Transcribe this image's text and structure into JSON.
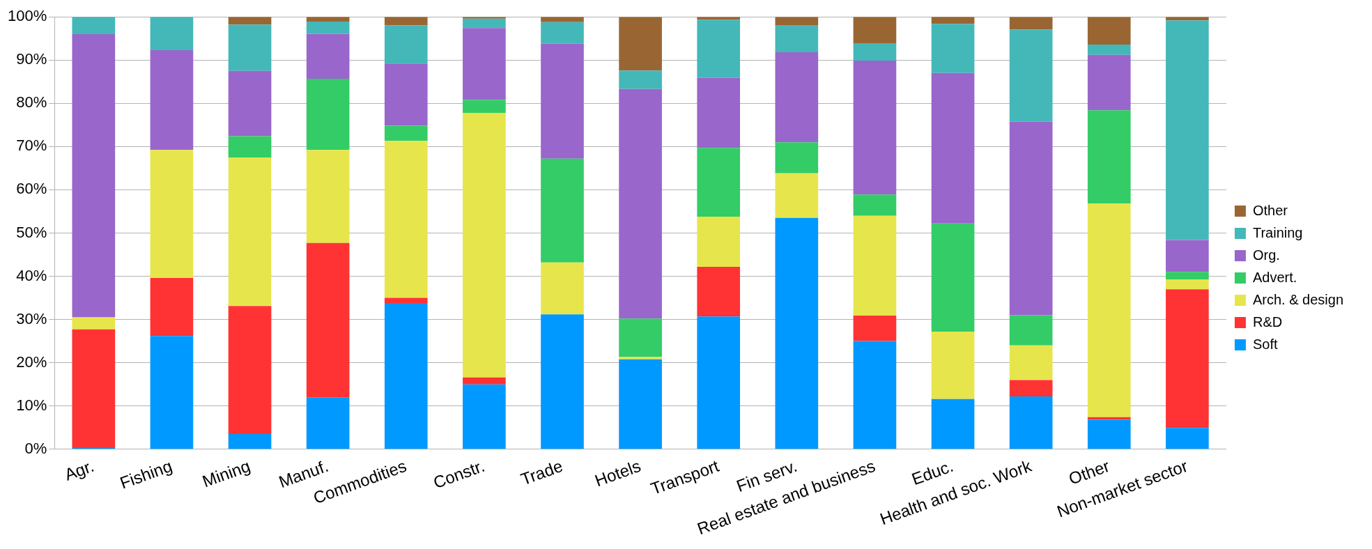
{
  "chart_data": {
    "type": "bar",
    "stacked": true,
    "grid": "y",
    "legend": "right",
    "categories": [
      "Agr.",
      "Fishing",
      "Mining",
      "Manuf.",
      "Commodities",
      "Constr.",
      "Trade",
      "Hotels",
      "Transport",
      "Fin serv.",
      "Real estate and business",
      "Educ.",
      "Health and soc. Work",
      "Other",
      "Non-market sector"
    ],
    "series": [
      {
        "name": "Soft",
        "color": "#0099ff",
        "values": [
          0.3,
          26.2,
          3.5,
          12,
          33.8,
          15,
          31.2,
          20.8,
          30.7,
          53.5,
          25,
          11.6,
          12.2,
          6.8,
          4.9
        ]
      },
      {
        "name": "R&D",
        "color": "#ff3333",
        "values": [
          27.4,
          13.4,
          29.6,
          35.7,
          1.2,
          1.6,
          0,
          0,
          11.5,
          0,
          5.9,
          0,
          3.8,
          0.6,
          32.1
        ]
      },
      {
        "name": "Arch. & design",
        "color": "#e6e64c",
        "values": [
          2.8,
          29.6,
          34.4,
          21.5,
          36.3,
          61.2,
          12,
          0.5,
          11.6,
          10.3,
          23.1,
          15.6,
          8,
          49.4,
          2.3
        ]
      },
      {
        "name": "Advert.",
        "color": "#33cc66",
        "values": [
          0,
          0,
          4.9,
          16.5,
          3.5,
          3,
          24,
          8.9,
          15.9,
          7.2,
          4.9,
          25,
          7,
          21.6,
          1.7
        ]
      },
      {
        "name": "Org.",
        "color": "#9966cc",
        "values": [
          65.5,
          23.1,
          15.1,
          10.4,
          14.4,
          16.6,
          26.6,
          53.1,
          16.2,
          20.8,
          31,
          34.8,
          44.8,
          12.8,
          7.4
        ]
      },
      {
        "name": "Training",
        "color": "#44b8b8",
        "values": [
          4,
          7.7,
          10.7,
          2.8,
          8.8,
          2.2,
          5,
          4.3,
          13.4,
          6.3,
          4,
          11.4,
          21.3,
          2.4,
          50.8
        ]
      },
      {
        "name": "Other",
        "color": "#996633",
        "values": [
          0,
          0,
          1.8,
          1.1,
          2,
          0.4,
          1.2,
          12.4,
          0.7,
          1.9,
          6.1,
          1.6,
          2.9,
          6.4,
          0.8
        ]
      }
    ],
    "ylim": [
      0,
      100
    ],
    "yticks": [
      {
        "value": 0,
        "label": "0%"
      },
      {
        "value": 10,
        "label": "10%"
      },
      {
        "value": 20,
        "label": "20%"
      },
      {
        "value": 30,
        "label": "30%"
      },
      {
        "value": 40,
        "label": "40%"
      },
      {
        "value": 50,
        "label": "50%"
      },
      {
        "value": 60,
        "label": "60%"
      },
      {
        "value": 70,
        "label": "70%"
      },
      {
        "value": 80,
        "label": "80%"
      },
      {
        "value": 90,
        "label": "90%"
      },
      {
        "value": 100,
        "label": "100%"
      }
    ]
  }
}
